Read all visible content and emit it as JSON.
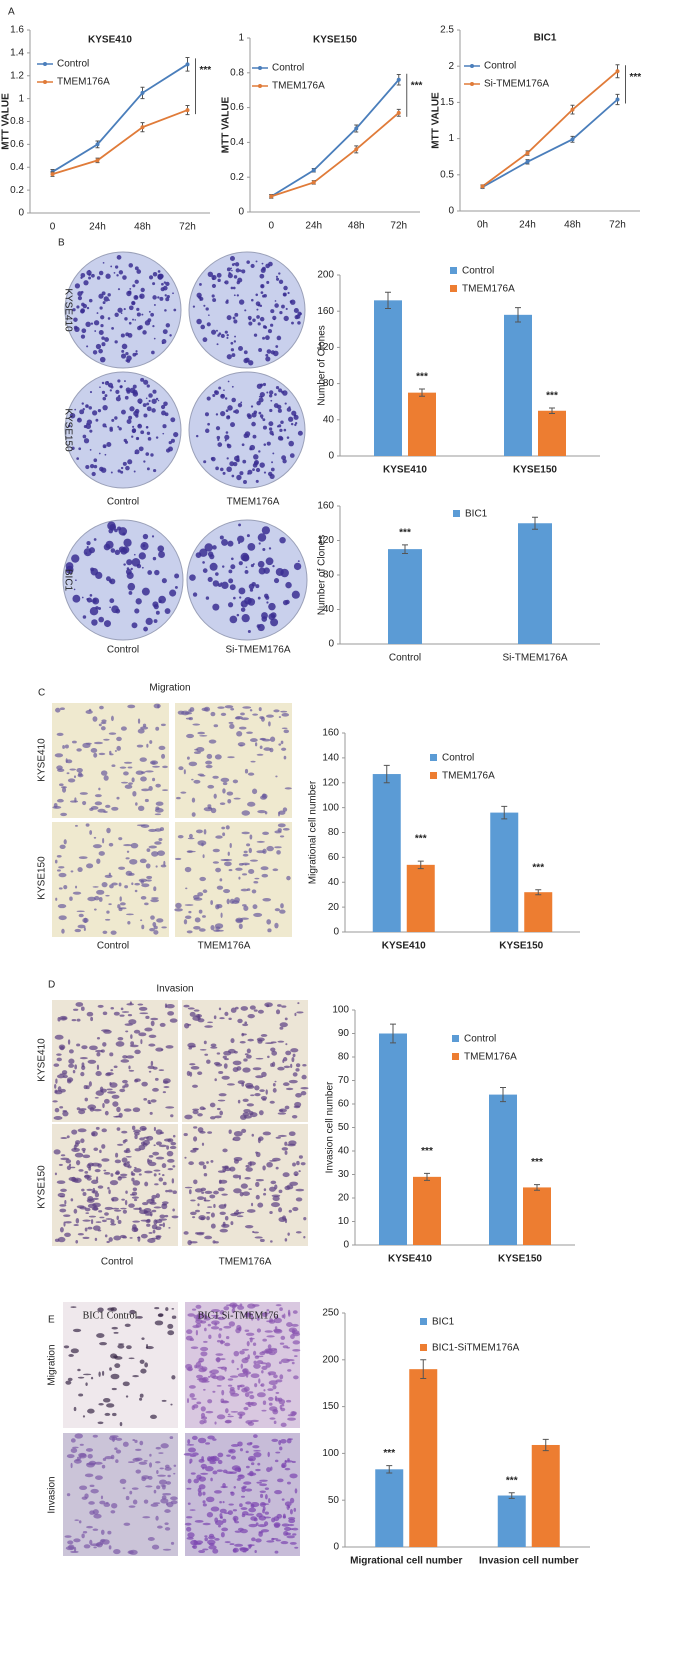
{
  "panel_labels": [
    "A",
    "B",
    "C",
    "D",
    "E"
  ],
  "panel_b": {
    "row_labels": [
      "KYSE410",
      "KYSE150",
      "BIC1"
    ],
    "column_labels": [
      "Control",
      "TMEM176A",
      "Control",
      "Si-TMEM176A"
    ]
  },
  "panel_c": {
    "title": "Migration",
    "row_labels": [
      "KYSE410",
      "KYSE150"
    ],
    "column_labels": [
      "Control",
      "TMEM176A"
    ]
  },
  "panel_d": {
    "title": "Invasion",
    "row_labels": [
      "KYSE410",
      "KYSE150"
    ],
    "column_labels": [
      "Control",
      "TMEM176A"
    ]
  },
  "panel_e": {
    "row_labels": [
      "Migration",
      "Invasion"
    ],
    "column_labels": [
      "BIC1 Control",
      "BIC1 Si-TMEM176"
    ]
  },
  "chart_data": [
    {
      "type": "line",
      "title": "KYSE410",
      "y_label": "MTT VALUE",
      "categories": [
        "0",
        "24h",
        "48h",
        "72h"
      ],
      "series": [
        {
          "name": "Control",
          "color": "#4a7ebb",
          "values": [
            0.36,
            0.6,
            1.05,
            1.3
          ],
          "errors": [
            0.02,
            0.03,
            0.05,
            0.06
          ]
        },
        {
          "name": "TMEM176A",
          "color": "#e07b39",
          "values": [
            0.34,
            0.46,
            0.75,
            0.9
          ],
          "errors": [
            0.02,
            0.02,
            0.04,
            0.04
          ]
        }
      ],
      "ylim": [
        0,
        1.6
      ],
      "yticks": [
        0,
        0.2,
        0.4,
        0.6,
        0.8,
        1,
        1.2,
        1.4,
        1.6
      ],
      "annotations": [
        "***"
      ]
    },
    {
      "type": "line",
      "title": "KYSE150",
      "y_label": "MTT VALUE",
      "categories": [
        "0",
        "24h",
        "48h",
        "72h"
      ],
      "series": [
        {
          "name": "Control",
          "color": "#4a7ebb",
          "values": [
            0.09,
            0.24,
            0.48,
            0.76
          ],
          "errors": [
            0.01,
            0.01,
            0.02,
            0.03
          ]
        },
        {
          "name": "TMEM176A",
          "color": "#e07b39",
          "values": [
            0.09,
            0.17,
            0.36,
            0.57
          ],
          "errors": [
            0.01,
            0.01,
            0.02,
            0.02
          ]
        }
      ],
      "ylim": [
        0,
        1
      ],
      "yticks": [
        0,
        0.2,
        0.4,
        0.6,
        0.8,
        1
      ],
      "annotations": [
        "***"
      ]
    },
    {
      "type": "line",
      "title": "BIC1",
      "y_label": "MTT VALUE",
      "categories": [
        "0h",
        "24h",
        "48h",
        "72h"
      ],
      "series": [
        {
          "name": "Control",
          "color": "#4a7ebb",
          "values": [
            0.33,
            0.68,
            0.99,
            1.54
          ],
          "errors": [
            0.02,
            0.03,
            0.04,
            0.07
          ]
        },
        {
          "name": "Si-TMEM176A",
          "color": "#e07b39",
          "values": [
            0.34,
            0.8,
            1.4,
            1.93
          ],
          "errors": [
            0.02,
            0.03,
            0.06,
            0.09
          ]
        }
      ],
      "ylim": [
        0,
        2.5
      ],
      "yticks": [
        0,
        0.5,
        1,
        1.5,
        2,
        2.5
      ],
      "annotations": [
        "***"
      ]
    },
    {
      "type": "bar",
      "y_label": "Number of Clones",
      "categories": [
        "KYSE410",
        "KYSE150"
      ],
      "series": [
        {
          "name": "Control",
          "color": "#5b9bd5",
          "values": [
            172,
            156
          ],
          "errors": [
            9,
            8
          ]
        },
        {
          "name": "TMEM176A",
          "color": "#ed7d31",
          "values": [
            70,
            50
          ],
          "errors": [
            4,
            3
          ]
        }
      ],
      "ylim": [
        0,
        200
      ],
      "yticks": [
        0,
        40,
        80,
        120,
        160,
        200
      ],
      "annotations": [
        "***",
        "***"
      ]
    },
    {
      "type": "bar",
      "y_label": "Number of Clones",
      "categories": [
        "Control",
        "Si-TMEM176A"
      ],
      "series": [
        {
          "name": "BIC1",
          "color": "#5b9bd5",
          "values": [
            110,
            140
          ],
          "errors": [
            5,
            7
          ]
        }
      ],
      "ylim": [
        0,
        160
      ],
      "yticks": [
        0,
        40,
        80,
        120,
        160
      ],
      "annotations": [
        "***"
      ]
    },
    {
      "type": "bar",
      "y_label": "Migrational cell number",
      "categories": [
        "KYSE410",
        "KYSE150"
      ],
      "series": [
        {
          "name": "Control",
          "color": "#5b9bd5",
          "values": [
            127,
            96
          ],
          "errors": [
            7,
            5
          ]
        },
        {
          "name": "TMEM176A",
          "color": "#ed7d31",
          "values": [
            54,
            32
          ],
          "errors": [
            3,
            2
          ]
        }
      ],
      "ylim": [
        0,
        160
      ],
      "yticks": [
        0,
        20,
        40,
        60,
        80,
        100,
        120,
        140,
        160
      ],
      "annotations": [
        "***",
        "***"
      ]
    },
    {
      "type": "bar",
      "y_label": "Invasion cell number",
      "categories": [
        "KYSE410",
        "KYSE150"
      ],
      "series": [
        {
          "name": "Control",
          "color": "#5b9bd5",
          "values": [
            90,
            64
          ],
          "errors": [
            4,
            3
          ]
        },
        {
          "name": "TMEM176A",
          "color": "#ed7d31",
          "values": [
            29,
            24.5
          ],
          "errors": [
            1.5,
            1.2
          ]
        }
      ],
      "ylim": [
        0,
        100
      ],
      "yticks": [
        0,
        10,
        20,
        30,
        40,
        50,
        60,
        70,
        80,
        90,
        100
      ],
      "annotations": [
        "***",
        "***"
      ]
    },
    {
      "type": "bar",
      "categories": [
        "Migrational cell number",
        "Invasion cell number"
      ],
      "series": [
        {
          "name": "BIC1",
          "color": "#5b9bd5",
          "values": [
            83,
            55
          ],
          "errors": [
            4,
            3
          ]
        },
        {
          "name": "BIC1-SiTMEM176A",
          "color": "#ed7d31",
          "values": [
            190,
            109
          ],
          "errors": [
            10,
            6
          ]
        }
      ],
      "ylim": [
        0,
        250
      ],
      "yticks": [
        0,
        50,
        100,
        150,
        200,
        250
      ],
      "annotations": [
        "***",
        "***"
      ]
    }
  ]
}
